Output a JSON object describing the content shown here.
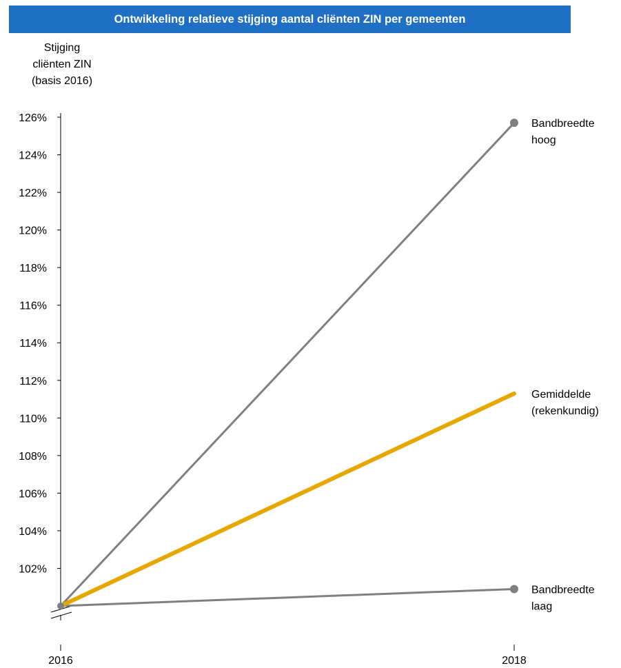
{
  "chart_data": {
    "type": "line",
    "title": "Ontwikkeling relatieve stijging aantal cliënten ZIN per gemeenten",
    "ylabel_lines": [
      "Stijging",
      "cliënten ZIN",
      "(basis 2016)"
    ],
    "xlabel": "",
    "x": [
      "2016",
      "2018"
    ],
    "ylim": [
      100,
      126
    ],
    "yticks": [
      102,
      104,
      106,
      108,
      110,
      112,
      114,
      116,
      118,
      120,
      122,
      124,
      126
    ],
    "ytick_labels": [
      "102%",
      "104%",
      "106%",
      "108%",
      "110%",
      "112%",
      "114%",
      "116%",
      "118%",
      "120%",
      "122%",
      "124%",
      "126%"
    ],
    "axis_break": true,
    "series": [
      {
        "name": "Bandbreedte hoog",
        "label_lines": [
          "Bandbreedte",
          "hoog"
        ],
        "values": [
          100,
          125.7
        ],
        "color": "#808080",
        "end_marker": true
      },
      {
        "name": "Gemiddelde (rekenkundig)",
        "label_lines": [
          "Gemiddelde",
          "(rekenkundig)"
        ],
        "values": [
          100,
          111.3
        ],
        "color": "#e6a800",
        "end_marker": false
      },
      {
        "name": "Bandbreedte laag",
        "label_lines": [
          "Bandbreedte",
          "laag"
        ],
        "values": [
          100,
          100.9
        ],
        "color": "#808080",
        "end_marker": true
      }
    ]
  },
  "colors": {
    "title_background": "#1f6fc5",
    "title_text": "#ffffff",
    "axis": "#000000"
  }
}
